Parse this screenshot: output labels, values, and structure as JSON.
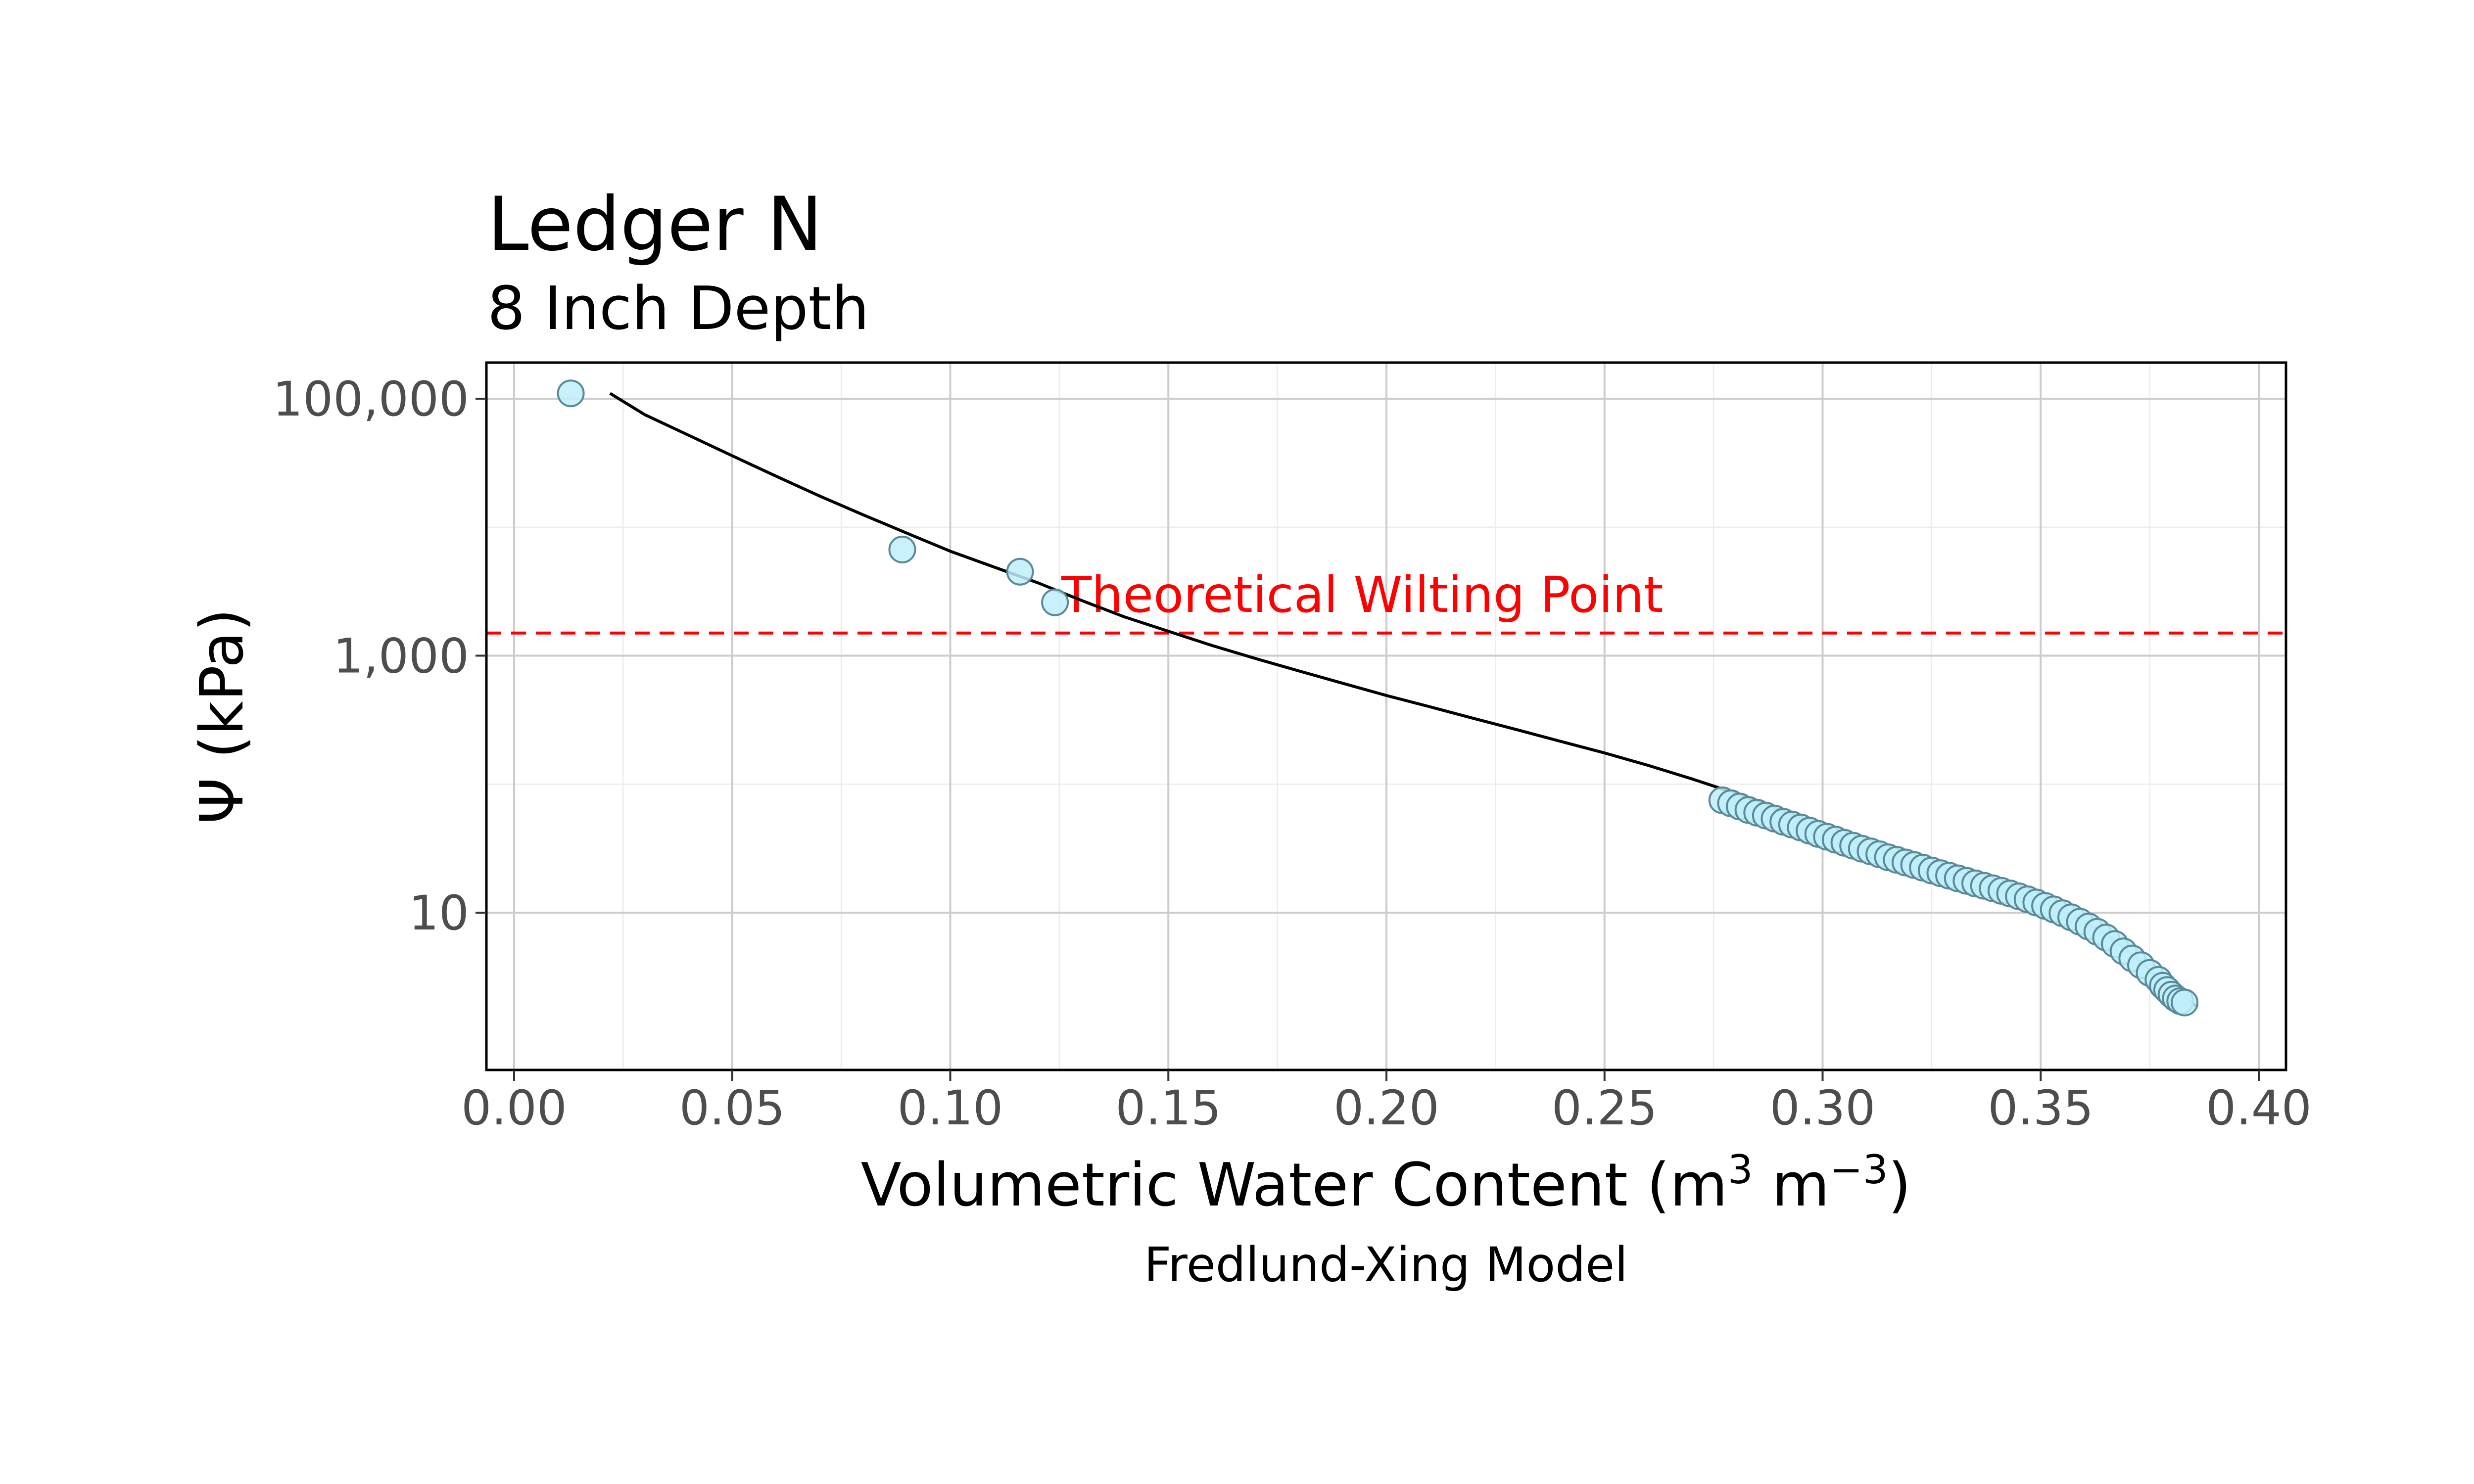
{
  "chart_data": {
    "type": "scatter",
    "title": "Ledger N",
    "subtitle": "8 Inch Depth",
    "xlabel": "Volumetric Water Content (m",
    "xlabel_sup1": "3",
    "xlabel_mid": " m",
    "xlabel_sup2": "−3",
    "xlabel_end": ")",
    "ylabel": "Ψ (kPa)",
    "caption": "Fredlund-Xing Model",
    "x_scale": "linear",
    "y_scale": "log10",
    "xlim": [
      0.0,
      0.4
    ],
    "ylim": [
      1.5,
      140000
    ],
    "x_ticks": [
      0.0,
      0.05,
      0.1,
      0.15,
      0.2,
      0.25,
      0.3,
      0.35,
      0.4
    ],
    "x_tick_labels": [
      "0.00",
      "0.05",
      "0.10",
      "0.15",
      "0.20",
      "0.25",
      "0.30",
      "0.35",
      "0.40"
    ],
    "y_ticks": [
      10,
      1000,
      100000
    ],
    "y_tick_labels": [
      "10",
      "1,000",
      "100,000"
    ],
    "grid": true,
    "wilting_point": {
      "label": "Theoretical Wilting Point",
      "y": 1500,
      "color": "#ff0000"
    },
    "point_fill": "#bfeefa",
    "point_stroke": "#5a8a99",
    "line_color": "#000000",
    "series": [
      {
        "type": "scatter",
        "points": [
          [
            0.013,
            110000
          ],
          [
            0.089,
            6700
          ],
          [
            0.116,
            4500
          ],
          [
            0.124,
            2600
          ],
          [
            0.277,
            75
          ],
          [
            0.279,
            71
          ],
          [
            0.281,
            67
          ],
          [
            0.283,
            63
          ],
          [
            0.285,
            60
          ],
          [
            0.287,
            57
          ],
          [
            0.289,
            54
          ],
          [
            0.291,
            51
          ],
          [
            0.293,
            48.5
          ],
          [
            0.295,
            46
          ],
          [
            0.297,
            43.5
          ],
          [
            0.299,
            41
          ],
          [
            0.301,
            39
          ],
          [
            0.303,
            37
          ],
          [
            0.305,
            35
          ],
          [
            0.307,
            33.2
          ],
          [
            0.309,
            31.5
          ],
          [
            0.311,
            30
          ],
          [
            0.313,
            28.5
          ],
          [
            0.315,
            27
          ],
          [
            0.317,
            25.8
          ],
          [
            0.319,
            24.6
          ],
          [
            0.321,
            23.5
          ],
          [
            0.323,
            22.4
          ],
          [
            0.325,
            21.3
          ],
          [
            0.327,
            20.3
          ],
          [
            0.329,
            19.4
          ],
          [
            0.331,
            18.5
          ],
          [
            0.333,
            17.7
          ],
          [
            0.335,
            16.9
          ],
          [
            0.337,
            16.2
          ],
          [
            0.339,
            15.5
          ],
          [
            0.341,
            14.8
          ],
          [
            0.343,
            14.1
          ],
          [
            0.345,
            13.4
          ],
          [
            0.347,
            12.7
          ],
          [
            0.349,
            12.0
          ],
          [
            0.351,
            11.3
          ],
          [
            0.353,
            10.6
          ],
          [
            0.355,
            9.9
          ],
          [
            0.357,
            9.2
          ],
          [
            0.359,
            8.5
          ],
          [
            0.361,
            7.8
          ],
          [
            0.363,
            7.1
          ],
          [
            0.365,
            6.4
          ],
          [
            0.367,
            5.7
          ],
          [
            0.369,
            5.0
          ],
          [
            0.371,
            4.4
          ],
          [
            0.373,
            3.9
          ],
          [
            0.375,
            3.4
          ],
          [
            0.377,
            3.0
          ],
          [
            0.378,
            2.7
          ],
          [
            0.379,
            2.5
          ],
          [
            0.38,
            2.3
          ],
          [
            0.381,
            2.15
          ],
          [
            0.382,
            2.05
          ],
          [
            0.383,
            2.0
          ]
        ]
      },
      {
        "type": "line",
        "points": [
          [
            0.022,
            110000
          ],
          [
            0.03,
            75000
          ],
          [
            0.04,
            52000
          ],
          [
            0.05,
            36000
          ],
          [
            0.06,
            25000
          ],
          [
            0.07,
            17500
          ],
          [
            0.08,
            12500
          ],
          [
            0.09,
            9000
          ],
          [
            0.1,
            6500
          ],
          [
            0.11,
            4900
          ],
          [
            0.12,
            3700
          ],
          [
            0.13,
            2700
          ],
          [
            0.14,
            2000
          ],
          [
            0.15,
            1550
          ],
          [
            0.16,
            1200
          ],
          [
            0.17,
            950
          ],
          [
            0.18,
            760
          ],
          [
            0.19,
            610
          ],
          [
            0.2,
            490
          ],
          [
            0.21,
            400
          ],
          [
            0.22,
            325
          ],
          [
            0.23,
            265
          ],
          [
            0.24,
            215
          ],
          [
            0.25,
            175
          ],
          [
            0.26,
            140
          ],
          [
            0.27,
            110
          ],
          [
            0.28,
            85
          ],
          [
            0.29,
            63
          ],
          [
            0.3,
            45
          ],
          [
            0.31,
            32
          ],
          [
            0.32,
            24
          ],
          [
            0.33,
            18.5
          ],
          [
            0.34,
            14.8
          ],
          [
            0.35,
            11.8
          ],
          [
            0.355,
            10.2
          ],
          [
            0.36,
            8.5
          ],
          [
            0.365,
            6.8
          ],
          [
            0.37,
            5.0
          ],
          [
            0.375,
            3.6
          ],
          [
            0.38,
            2.6
          ],
          [
            0.385,
            1.95
          ],
          [
            0.386,
            1.85
          ]
        ]
      }
    ]
  }
}
